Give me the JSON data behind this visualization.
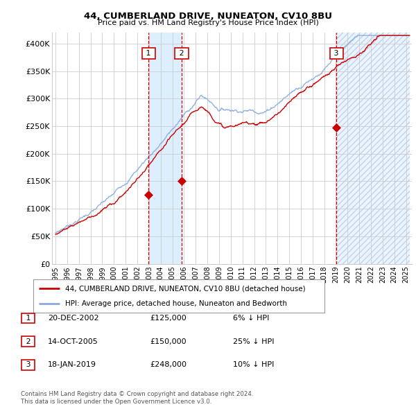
{
  "title": "44, CUMBERLAND DRIVE, NUNEATON, CV10 8BU",
  "subtitle": "Price paid vs. HM Land Registry's House Price Index (HPI)",
  "ylim": [
    0,
    420000
  ],
  "xlim_start": 1994.7,
  "xlim_end": 2025.5,
  "yticks": [
    0,
    50000,
    100000,
    150000,
    200000,
    250000,
    300000,
    350000,
    400000
  ],
  "ytick_labels": [
    "£0",
    "£50K",
    "£100K",
    "£150K",
    "£200K",
    "£250K",
    "£300K",
    "£350K",
    "£400K"
  ],
  "sales": [
    {
      "label": "1",
      "date": "20-DEC-2002",
      "price": 125000,
      "year": 2002.97,
      "hpi_pct": "6% ↓ HPI"
    },
    {
      "label": "2",
      "date": "14-OCT-2005",
      "price": 150000,
      "year": 2005.79,
      "hpi_pct": "25% ↓ HPI"
    },
    {
      "label": "3",
      "date": "18-JAN-2019",
      "price": 248000,
      "year": 2019.05,
      "hpi_pct": "10% ↓ HPI"
    }
  ],
  "legend_line1": "44, CUMBERLAND DRIVE, NUNEATON, CV10 8BU (detached house)",
  "legend_line2": "HPI: Average price, detached house, Nuneaton and Bedworth",
  "footer1": "Contains HM Land Registry data © Crown copyright and database right 2024.",
  "footer2": "This data is licensed under the Open Government Licence v3.0.",
  "red_color": "#cc0000",
  "blue_color": "#88aadd",
  "shade_color": "#ddeeff",
  "grid_color": "#cccccc",
  "background_color": "#ffffff",
  "box_border_color": "#cc0000"
}
